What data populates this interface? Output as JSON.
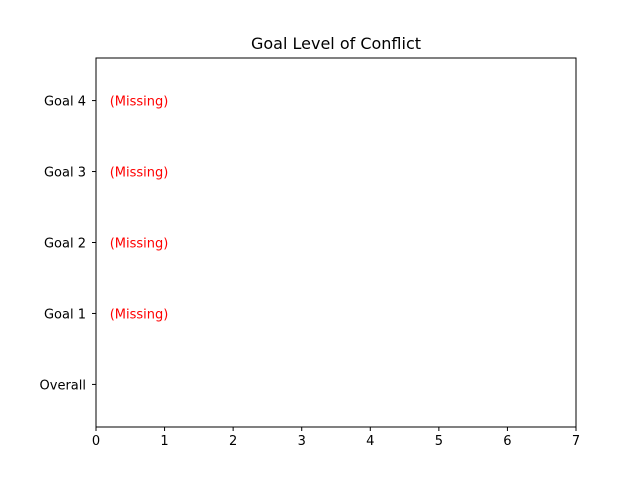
{
  "chart_data": {
    "type": "bar",
    "orientation": "horizontal",
    "title": "Goal Level of Conflict",
    "xlabel": "",
    "ylabel": "",
    "xlim": [
      0,
      7
    ],
    "x_ticks": [
      0,
      1,
      2,
      3,
      4,
      5,
      6,
      7
    ],
    "categories": [
      "Overall",
      "Goal 1",
      "Goal 2",
      "Goal 3",
      "Goal 4"
    ],
    "values": [
      null,
      null,
      null,
      null,
      null
    ],
    "annotations": [
      {
        "category": "Goal 1",
        "text": "(Missing)",
        "x": 0.2,
        "color": "#ff0000"
      },
      {
        "category": "Goal 2",
        "text": "(Missing)",
        "x": 0.2,
        "color": "#ff0000"
      },
      {
        "category": "Goal 3",
        "text": "(Missing)",
        "x": 0.2,
        "color": "#ff0000"
      },
      {
        "category": "Goal 4",
        "text": "(Missing)",
        "x": 0.2,
        "color": "#ff0000"
      }
    ],
    "grid": false,
    "legend": "none"
  }
}
